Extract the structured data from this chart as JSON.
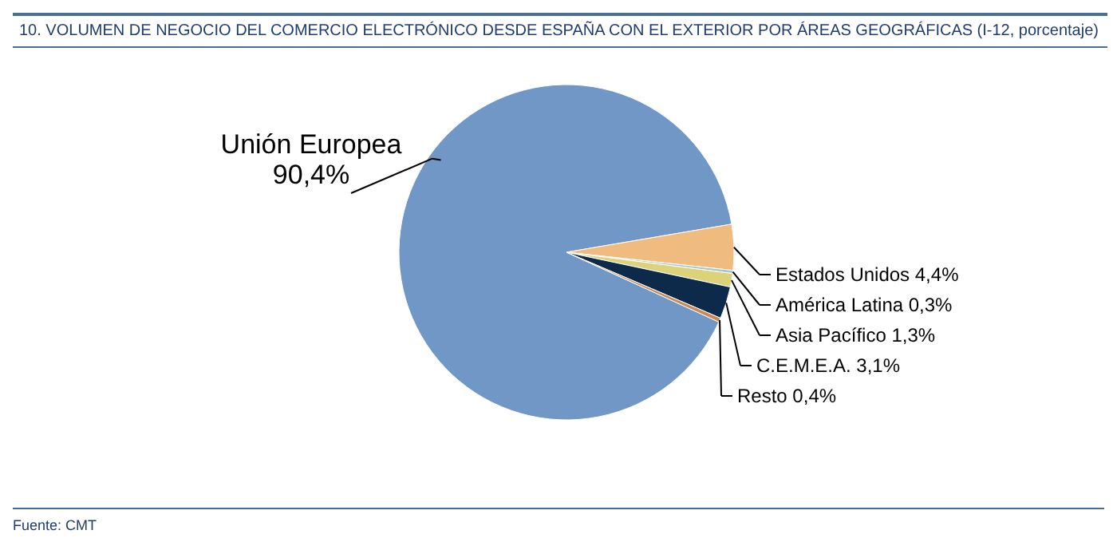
{
  "chart_data": {
    "type": "pie",
    "title": "10. VOLUMEN DE NEGOCIO DEL COMERCIO ELECTRÓNICO DESDE ESPAÑA CON EL EXTERIOR POR ÁREAS GEOGRÁFICAS (I-12, porcentaje)",
    "categories": [
      "Unión Europea",
      "Estados Unidos",
      "América Latina",
      "Asia Pacífico",
      "C.E.M.E.A.",
      "Resto"
    ],
    "values": [
      90.4,
      4.4,
      0.3,
      1.3,
      3.1,
      0.4
    ],
    "value_labels": [
      "90,4%",
      "4,4%",
      "0,3%",
      "1,3%",
      "3,1%",
      "0,4%"
    ],
    "colors": [
      "#7097c5",
      "#f0bb7f",
      "#a8c8c8",
      "#dcd27a",
      "#0d2a4a",
      "#c98a5a"
    ],
    "annotations": [
      "Fuente: CMT"
    ]
  }
}
